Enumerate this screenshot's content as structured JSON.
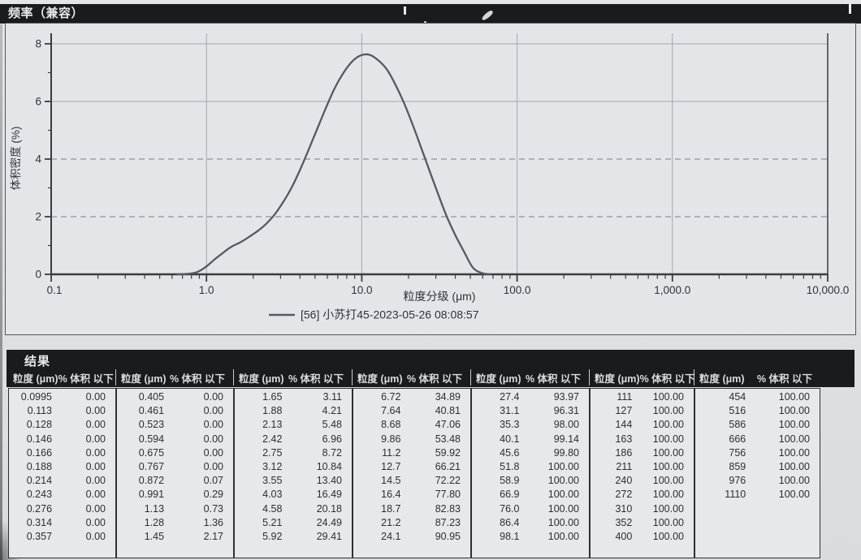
{
  "title_bar": {
    "title": "频率（兼容）"
  },
  "chart": {
    "ylabel": "体积密度 (%)",
    "xlabel": "粒度分级 (μm)",
    "legend": "[56] 小苏打45-2023-05-26 08:08:57",
    "y_ticks": [
      "0",
      "2",
      "4",
      "6",
      "8"
    ],
    "x_ticks": [
      "0.1",
      "1.0",
      "10.0",
      "100.0",
      "1,000.0",
      "10,000.0"
    ]
  },
  "chart_data": {
    "type": "line",
    "title": "频率（兼容）",
    "xlabel": "粒度分级 (μm)",
    "ylabel": "体积密度 (%)",
    "xscale": "log",
    "xlim": [
      0.1,
      10000
    ],
    "ylim": [
      0,
      8
    ],
    "grid": true,
    "legend_position": "bottom",
    "legend_entries": [
      "[56] 小苏打45-2023-05-26 08:08:57"
    ],
    "series": [
      {
        "name": "[56] 小苏打45-2023-05-26 08:08:57",
        "x": [
          0.65,
          0.767,
          0.872,
          0.991,
          1.13,
          1.28,
          1.45,
          1.65,
          1.88,
          2.13,
          2.42,
          2.75,
          3.12,
          3.55,
          4.03,
          4.58,
          5.21,
          5.92,
          6.72,
          7.64,
          8.68,
          9.86,
          11.2,
          12.7,
          14.5,
          16.4,
          18.7,
          21.2,
          24.1,
          27.4,
          31.1,
          35.3,
          40.1,
          45.6,
          51.8,
          58.9,
          66.9
        ],
        "y": [
          0,
          0.02,
          0.08,
          0.26,
          0.52,
          0.75,
          0.96,
          1.11,
          1.3,
          1.5,
          1.75,
          2.08,
          2.51,
          3.03,
          3.66,
          4.37,
          5.1,
          5.82,
          6.48,
          7.0,
          7.39,
          7.6,
          7.62,
          7.44,
          7.11,
          6.6,
          5.95,
          5.21,
          4.4,
          3.57,
          2.77,
          2.0,
          1.35,
          0.78,
          0.24,
          0.05,
          0
        ]
      }
    ]
  },
  "results": {
    "section_title": "结果",
    "col_size": "粒度 (μm)",
    "col_pct": "% 体积 以下",
    "groups": [
      {
        "rows": [
          [
            "0.0995",
            "0.00"
          ],
          [
            "0.113",
            "0.00"
          ],
          [
            "0.128",
            "0.00"
          ],
          [
            "0.146",
            "0.00"
          ],
          [
            "0.166",
            "0.00"
          ],
          [
            "0.188",
            "0.00"
          ],
          [
            "0.214",
            "0.00"
          ],
          [
            "0.243",
            "0.00"
          ],
          [
            "0.276",
            "0.00"
          ],
          [
            "0.314",
            "0.00"
          ],
          [
            "0.357",
            "0.00"
          ]
        ]
      },
      {
        "rows": [
          [
            "0.405",
            "0.00"
          ],
          [
            "0.461",
            "0.00"
          ],
          [
            "0.523",
            "0.00"
          ],
          [
            "0.594",
            "0.00"
          ],
          [
            "0.675",
            "0.00"
          ],
          [
            "0.767",
            "0.00"
          ],
          [
            "0.872",
            "0.07"
          ],
          [
            "0.991",
            "0.29"
          ],
          [
            "1.13",
            "0.73"
          ],
          [
            "1.28",
            "1.36"
          ],
          [
            "1.45",
            "2.17"
          ]
        ]
      },
      {
        "rows": [
          [
            "1.65",
            "3.11"
          ],
          [
            "1.88",
            "4.21"
          ],
          [
            "2.13",
            "5.48"
          ],
          [
            "2.42",
            "6.96"
          ],
          [
            "2.75",
            "8.72"
          ],
          [
            "3.12",
            "10.84"
          ],
          [
            "3.55",
            "13.40"
          ],
          [
            "4.03",
            "16.49"
          ],
          [
            "4.58",
            "20.18"
          ],
          [
            "5.21",
            "24.49"
          ],
          [
            "5.92",
            "29.41"
          ]
        ]
      },
      {
        "rows": [
          [
            "6.72",
            "34.89"
          ],
          [
            "7.64",
            "40.81"
          ],
          [
            "8.68",
            "47.06"
          ],
          [
            "9.86",
            "53.48"
          ],
          [
            "11.2",
            "59.92"
          ],
          [
            "12.7",
            "66.21"
          ],
          [
            "14.5",
            "72.22"
          ],
          [
            "16.4",
            "77.80"
          ],
          [
            "18.7",
            "82.83"
          ],
          [
            "21.2",
            "87.23"
          ],
          [
            "24.1",
            "90.95"
          ]
        ]
      },
      {
        "rows": [
          [
            "27.4",
            "93.97"
          ],
          [
            "31.1",
            "96.31"
          ],
          [
            "35.3",
            "98.00"
          ],
          [
            "40.1",
            "99.14"
          ],
          [
            "45.6",
            "99.80"
          ],
          [
            "51.8",
            "100.00"
          ],
          [
            "58.9",
            "100.00"
          ],
          [
            "66.9",
            "100.00"
          ],
          [
            "76.0",
            "100.00"
          ],
          [
            "86.4",
            "100.00"
          ],
          [
            "98.1",
            "100.00"
          ]
        ]
      },
      {
        "rows": [
          [
            "111",
            "100.00"
          ],
          [
            "127",
            "100.00"
          ],
          [
            "144",
            "100.00"
          ],
          [
            "163",
            "100.00"
          ],
          [
            "186",
            "100.00"
          ],
          [
            "211",
            "100.00"
          ],
          [
            "240",
            "100.00"
          ],
          [
            "272",
            "100.00"
          ],
          [
            "310",
            "100.00"
          ],
          [
            "352",
            "100.00"
          ],
          [
            "400",
            "100.00"
          ]
        ]
      },
      {
        "rows": [
          [
            "454",
            "100.00"
          ],
          [
            "516",
            "100.00"
          ],
          [
            "586",
            "100.00"
          ],
          [
            "666",
            "100.00"
          ],
          [
            "756",
            "100.00"
          ],
          [
            "859",
            "100.00"
          ],
          [
            "976",
            "100.00"
          ],
          [
            "1110",
            "100.00"
          ]
        ]
      }
    ]
  },
  "colors": {
    "background": "#dfe2e5",
    "panel": "#e3e5e8",
    "bar": "#1a1b1d",
    "bar_text": "#e9eaeb",
    "ink": "#2b2e34",
    "axis": "#3a3c40",
    "grid": "#a3a8ad",
    "curve": "#56595e",
    "box_bg": "#e6e8ea",
    "box_border": "#2e3033"
  }
}
